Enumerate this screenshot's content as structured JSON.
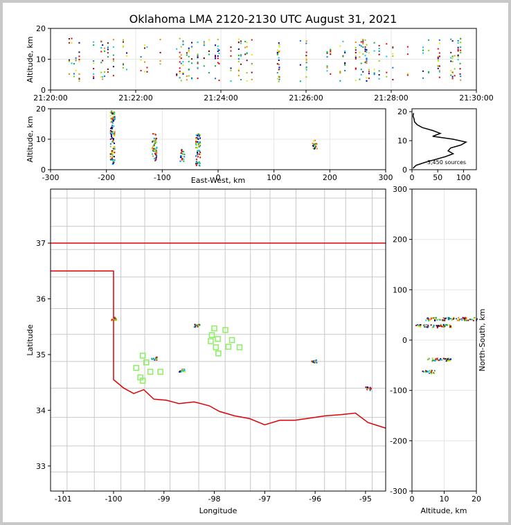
{
  "title": "Oklahoma LMA 2120-2130 UTC August 31, 2021",
  "colors": {
    "border": "#e00000",
    "county": "#c8c8c8",
    "station": "#88f060",
    "frame": "#c8c8c8",
    "palette": [
      "#0000a0",
      "#0070e0",
      "#00c8e0",
      "#00b040",
      "#80d000",
      "#f0e000",
      "#f08000",
      "#e00000",
      "#800000"
    ]
  },
  "chart_data": [
    {
      "panel": "time-altitude",
      "type": "scatter",
      "xlabel": "",
      "ylabel": "Altitude, km",
      "xlim": [
        "21:20:00",
        "21:30:00"
      ],
      "ylim": [
        0,
        20
      ],
      "xticks": [
        "21:20:00",
        "21:22:00",
        "21:24:00",
        "21:26:00",
        "21:28:00",
        "21:30:00"
      ],
      "yticks": [
        "0",
        "10",
        "20"
      ],
      "grid": true
    },
    {
      "panel": "eastwest-altitude",
      "type": "scatter",
      "xlabel": "East-West, km",
      "ylabel": "Altitude, km",
      "xlim": [
        -300,
        300
      ],
      "ylim": [
        0,
        20
      ],
      "xticks": [
        "-300",
        "-200",
        "-100",
        "0",
        "100",
        "200",
        "300"
      ],
      "yticks": [
        "0",
        "10",
        "20"
      ],
      "grid": true,
      "clusters": [
        {
          "x": -190,
          "z_min": 2,
          "z_max": 20
        },
        {
          "x": -115,
          "z_min": 3,
          "z_max": 12
        },
        {
          "x": -65,
          "z_min": 3,
          "z_max": 7
        },
        {
          "x": -37,
          "z_min": 1,
          "z_max": 12
        },
        {
          "x": 172,
          "z_min": 7,
          "z_max": 10
        }
      ]
    },
    {
      "panel": "altitude-histogram",
      "type": "line",
      "xticks": [
        "0",
        "50",
        "100"
      ],
      "yticks": [
        "0",
        "10",
        "20"
      ],
      "xlim": [
        0,
        125
      ],
      "ylim": [
        0,
        21
      ],
      "annotation": "3,450 sources",
      "altitude": [
        0.5,
        1.5,
        2.5,
        3.5,
        4.5,
        5.5,
        6.5,
        7.5,
        8.5,
        9.5,
        10.5,
        11.5,
        12.5,
        13.5,
        14.5,
        15.5,
        16.5,
        17.5,
        18.5,
        19.5
      ],
      "count": [
        2,
        8,
        25,
        45,
        65,
        80,
        70,
        75,
        95,
        105,
        80,
        40,
        55,
        40,
        20,
        10,
        5,
        4,
        2,
        3
      ]
    },
    {
      "panel": "plan-view",
      "type": "scatter",
      "xlabel": "Longitude",
      "ylabel": "Latitude",
      "xlim": [
        -101.25,
        -94.6
      ],
      "ylim": [
        32.55,
        37.97
      ],
      "xticks": [
        "-101",
        "-100",
        "-99",
        "-98",
        "-97",
        "-96",
        "-95"
      ],
      "yticks": [
        "33",
        "34",
        "35",
        "36",
        "37"
      ],
      "clusters": [
        {
          "lon": -100.0,
          "lat": 35.65
        },
        {
          "lon": -99.2,
          "lat": 34.94
        },
        {
          "lon": -98.65,
          "lat": 34.72
        },
        {
          "lon": -98.35,
          "lat": 35.53
        },
        {
          "lon": -96.03,
          "lat": 34.89
        },
        {
          "lon": -94.95,
          "lat": 34.4
        }
      ],
      "stations": [
        {
          "lon": -99.55,
          "lat": 34.76
        },
        {
          "lon": -99.42,
          "lat": 34.98
        },
        {
          "lon": -99.35,
          "lat": 34.86
        },
        {
          "lon": -99.27,
          "lat": 34.69
        },
        {
          "lon": -99.47,
          "lat": 34.59
        },
        {
          "lon": -99.42,
          "lat": 34.53
        },
        {
          "lon": -99.07,
          "lat": 34.69
        },
        {
          "lon": -98.0,
          "lat": 35.47
        },
        {
          "lon": -98.05,
          "lat": 35.35
        },
        {
          "lon": -98.07,
          "lat": 35.24
        },
        {
          "lon": -97.93,
          "lat": 35.28
        },
        {
          "lon": -97.97,
          "lat": 35.13
        },
        {
          "lon": -97.92,
          "lat": 35.02
        },
        {
          "lon": -97.78,
          "lat": 35.44
        },
        {
          "lon": -97.72,
          "lat": 35.14
        },
        {
          "lon": -97.65,
          "lat": 35.26
        },
        {
          "lon": -97.5,
          "lat": 35.13
        }
      ]
    },
    {
      "panel": "altitude-northsouth",
      "type": "scatter",
      "xlabel": "Altitude, km",
      "ylabel": "North-South, km",
      "xlim": [
        0,
        20
      ],
      "ylim": [
        -300,
        300
      ],
      "xticks": [
        "0",
        "10",
        "20"
      ],
      "yticks": [
        "-300",
        "-200",
        "-100",
        "0",
        "100",
        "200",
        "300"
      ],
      "grid": true,
      "clusters": [
        {
          "y": 43,
          "z_min": 4,
          "z_max": 20
        },
        {
          "y": 29,
          "z_min": 1,
          "z_max": 12
        },
        {
          "y": -38,
          "z_min": 4,
          "z_max": 12
        },
        {
          "y": -62,
          "z_min": 3,
          "z_max": 7
        }
      ]
    }
  ]
}
